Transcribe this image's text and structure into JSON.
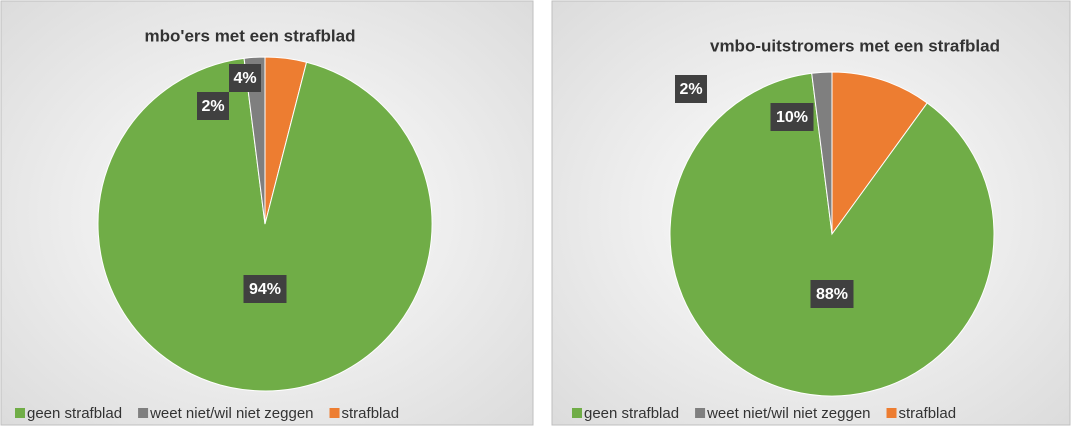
{
  "chart_data": [
    {
      "type": "pie",
      "title": "mbo'ers met een strafblad",
      "categories": [
        "geen strafblad",
        "weet niet/wil niet zeggen",
        "strafblad"
      ],
      "values": [
        94,
        2,
        4
      ],
      "value_labels": [
        "94%",
        "2%",
        "4%"
      ],
      "colors": [
        "#70ad47",
        "#7f7f7f",
        "#ed7d31"
      ],
      "legend": "bottom"
    },
    {
      "type": "pie",
      "title": "vmbo-uitstromers met een strafblad",
      "categories": [
        "geen strafblad",
        "weet niet/wil niet zeggen",
        "strafblad"
      ],
      "values": [
        88,
        2,
        10
      ],
      "value_labels": [
        "88%",
        "2%",
        "10%"
      ],
      "colors": [
        "#70ad47",
        "#7f7f7f",
        "#ed7d31"
      ],
      "legend": "bottom"
    }
  ]
}
